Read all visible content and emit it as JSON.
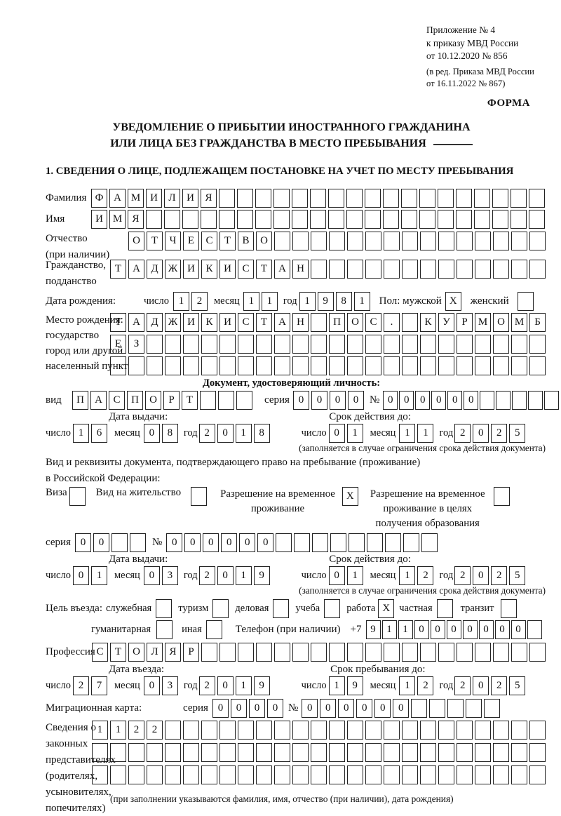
{
  "header": {
    "appendix_lines": [
      "Приложение № 4",
      "к приказу МВД России",
      "от 10.12.2020 № 856"
    ],
    "amendment_lines": [
      "(в ред. Приказа МВД России",
      "от 16.11.2022 № 867)"
    ],
    "form_label": "ФОРМА"
  },
  "title": {
    "line1": "УВЕДОМЛЕНИЕ О ПРИБЫТИИ ИНОСТРАННОГО ГРАЖДАНИНА",
    "line2": "ИЛИ ЛИЦА БЕЗ ГРАЖДАНСТВА В МЕСТО ПРЕБЫВАНИЯ"
  },
  "section1": {
    "heading": "1. СВЕДЕНИЯ О ЛИЦЕ, ПОДЛЕЖАЩЕМ ПОСТАНОВКЕ НА УЧЕТ ПО МЕСТУ ПРЕБЫВАНИЯ",
    "surname": {
      "label": "Фамилия",
      "cells": {
        "n": 25,
        "t": "ФАМИЛИЯ"
      }
    },
    "given_name": {
      "label": "Имя",
      "cells": {
        "n": 25,
        "t": "ИМЯ"
      }
    },
    "patronymic": {
      "label1": "Отчество",
      "label2": "(при наличии)",
      "cells": {
        "n": 23,
        "t": "ОТЧЕСТВО"
      }
    },
    "citizenship": {
      "label1": "Гражданство,",
      "label2": "подданство",
      "cells": {
        "n": 24,
        "t": "ТАДЖИКИСТАН"
      }
    },
    "birth_date": {
      "label": "Дата рождения:",
      "day_label": "число",
      "day": {
        "n": 2,
        "t": "12"
      },
      "month_label": "месяц",
      "month": {
        "n": 2,
        "t": "11"
      },
      "year_label": "год",
      "year": {
        "n": 4,
        "t": "1981"
      }
    },
    "gender": {
      "label": "Пол: мужской",
      "male": {
        "n": 1,
        "t": "X"
      },
      "female_label": "женский",
      "female": {
        "n": 1,
        "t": ""
      }
    },
    "birth_place": {
      "labels": [
        "Место рождения:",
        "государство",
        "город или другой",
        "населенный пункт"
      ],
      "row1": {
        "n": 24,
        "t": "ТАДЖИКИСТАН ПОС. КУРМОМБ"
      },
      "row2": {
        "n": 24,
        "t": "ЕЗ"
      },
      "row3": {
        "n": 24,
        "t": ""
      }
    },
    "identity_doc": {
      "heading": "Документ, удостоверяющий личность:",
      "kind_label": "вид",
      "kind": {
        "n": 10,
        "t": "ПАСПОРТ"
      },
      "series_label": "серия",
      "series": {
        "n": 4,
        "t": "0000"
      },
      "number_label": "№",
      "number": {
        "n": 11,
        "t": "000000"
      },
      "issue_label": "Дата выдачи:",
      "issue_day_label": "число",
      "issue_day": {
        "n": 2,
        "t": "16"
      },
      "issue_month_label": "месяц",
      "issue_month": {
        "n": 2,
        "t": "08"
      },
      "issue_year_label": "год",
      "issue_year": {
        "n": 4,
        "t": "2018"
      },
      "valid_label": "Срок действия до:",
      "valid_day_label": "число",
      "valid_day": {
        "n": 2,
        "t": "01"
      },
      "valid_month_label": "месяц",
      "valid_month": {
        "n": 2,
        "t": "11"
      },
      "valid_year_label": "год",
      "valid_year": {
        "n": 4,
        "t": "2025"
      },
      "note": "(заполняется в случае ограничения срока действия документа)"
    },
    "residence_doc": {
      "intro1": "Вид и реквизиты документа, подтверждающего право на пребывание (проживание)",
      "intro2": "в Российской Федерации:",
      "visa_label": "Виза",
      "visa": {
        "n": 1,
        "t": ""
      },
      "residence_permit_label": "Вид на жительство",
      "residence_permit": {
        "n": 1,
        "t": ""
      },
      "temp_permit_label1": "Разрешение на временное",
      "temp_permit_label2": "проживание",
      "temp_permit": {
        "n": 1,
        "t": "X"
      },
      "edu_permit_label1": "Разрешение на временное",
      "edu_permit_label2": "проживание в целях",
      "edu_permit_label3": "получения образования",
      "edu_permit": {
        "n": 1,
        "t": ""
      },
      "series_label": "серия",
      "series": {
        "n": 4,
        "t": "00"
      },
      "number_label": "№",
      "number": {
        "n": 15,
        "t": "000000"
      },
      "issue_label": "Дата выдачи:",
      "issue_day_label": "число",
      "issue_day": {
        "n": 2,
        "t": "01"
      },
      "issue_month_label": "месяц",
      "issue_month": {
        "n": 2,
        "t": "03"
      },
      "issue_year_label": "год",
      "issue_year": {
        "n": 4,
        "t": "2019"
      },
      "valid_label": "Срок действия до:",
      "valid_day_label": "число",
      "valid_day": {
        "n": 2,
        "t": "01"
      },
      "valid_month_label": "месяц",
      "valid_month": {
        "n": 2,
        "t": "12"
      },
      "valid_year_label": "год",
      "valid_year": {
        "n": 4,
        "t": "2025"
      },
      "note": "(заполняется в случае ограничения срока действия документа)"
    },
    "visit_purpose": {
      "label": "Цель въезда:",
      "official_label": "служебная",
      "official": {
        "n": 1,
        "t": ""
      },
      "tourism_label": "туризм",
      "tourism": {
        "n": 1,
        "t": ""
      },
      "business_label": "деловая",
      "business": {
        "n": 1,
        "t": ""
      },
      "study_label": "учеба",
      "study": {
        "n": 1,
        "t": ""
      },
      "work_label": "работа",
      "work": {
        "n": 1,
        "t": "X"
      },
      "private_label": "частная",
      "private": {
        "n": 1,
        "t": ""
      },
      "transit_label": "транзит",
      "transit": {
        "n": 1,
        "t": ""
      },
      "humanitarian_label": "гуманитарная",
      "humanitarian": {
        "n": 1,
        "t": ""
      },
      "other_label": "иная",
      "other": {
        "n": 1,
        "t": ""
      }
    },
    "phone": {
      "label": "Телефон (при наличии)",
      "prefix": "+7",
      "cells": {
        "n": 11,
        "t": "9110000000"
      }
    },
    "profession": {
      "label": "Профессия",
      "cells": {
        "n": 25,
        "t": "СТОЛЯР"
      }
    },
    "entry": {
      "issue_label": "Дата въезда:",
      "day_label": "число",
      "day": {
        "n": 2,
        "t": "27"
      },
      "month_label": "месяц",
      "month": {
        "n": 2,
        "t": "03"
      },
      "year_label": "год",
      "year": {
        "n": 4,
        "t": "2019"
      },
      "stay_label": "Срок пребывания до:",
      "stay_day_label": "число",
      "stay_day": {
        "n": 2,
        "t": "19"
      },
      "stay_month_label": "месяц",
      "stay_month": {
        "n": 2,
        "t": "12"
      },
      "stay_year_label": "год",
      "stay_year": {
        "n": 4,
        "t": "2025"
      }
    },
    "migration_card": {
      "label": "Миграционная карта:",
      "series_label": "серия",
      "series": {
        "n": 4,
        "t": "0000"
      },
      "number_label": "№",
      "number": {
        "n": 11,
        "t": "000000"
      }
    },
    "legal_reps": {
      "labels": [
        "Сведения о",
        "законных",
        "представителях",
        "(родителях,",
        "усыновителях,",
        "попечителях)"
      ],
      "row1": {
        "n": 25,
        "t": "1122"
      },
      "row2": {
        "n": 25,
        "t": ""
      },
      "row3": {
        "n": 25,
        "t": ""
      },
      "note": "(при заполнении указываются фамилия, имя, отчество (при наличии), дата рождения)"
    }
  }
}
